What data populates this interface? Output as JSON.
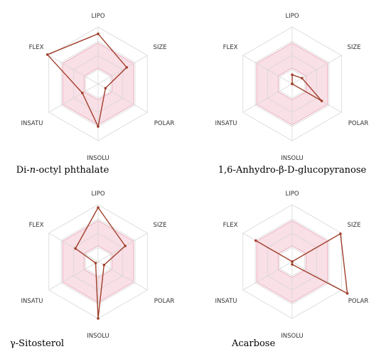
{
  "chart_data": [
    {
      "type": "radar",
      "title": "Di-n-octyl phthalate",
      "title_parts": [
        "Di-",
        "n",
        "-octyl phthalate"
      ],
      "axes": [
        "LIPO",
        "SIZE",
        "POLAR",
        "INSOLU",
        "INSATU",
        "FLEX"
      ],
      "values": [
        0.88,
        0.58,
        0.15,
        0.75,
        0.32,
        1.03
      ],
      "range": [
        0,
        1
      ]
    },
    {
      "type": "radar",
      "title": "1,6-Anhydro-β-D-glucopyranose",
      "axes": [
        "LIPO",
        "SIZE",
        "POLAR",
        "INSOLU",
        "INSATU",
        "FLEX"
      ],
      "values": [
        0.16,
        0.2,
        0.6,
        0.0,
        0.0,
        0.0
      ],
      "range": [
        0,
        1
      ]
    },
    {
      "type": "radar",
      "title": "γ-Sitosterol",
      "axes": [
        "LIPO",
        "SIZE",
        "POLAR",
        "INSOLU",
        "INSATU",
        "FLEX"
      ],
      "values": [
        0.95,
        0.55,
        0.12,
        1.0,
        0.05,
        0.46
      ],
      "range": [
        0,
        1
      ]
    },
    {
      "type": "radar",
      "title": "Acarbose",
      "axes": [
        "LIPO",
        "SIZE",
        "POLAR",
        "INSOLU",
        "INSATU",
        "FLEX"
      ],
      "values": [
        0.0,
        0.98,
        1.12,
        0.05,
        0.0,
        0.74
      ],
      "range": [
        0,
        1
      ]
    }
  ],
  "style": {
    "line_color": "#a0402c",
    "band_fill": "#f9dfe6",
    "band_stroke": "#e9a9b9",
    "grid_color": "#d8d8d8"
  }
}
